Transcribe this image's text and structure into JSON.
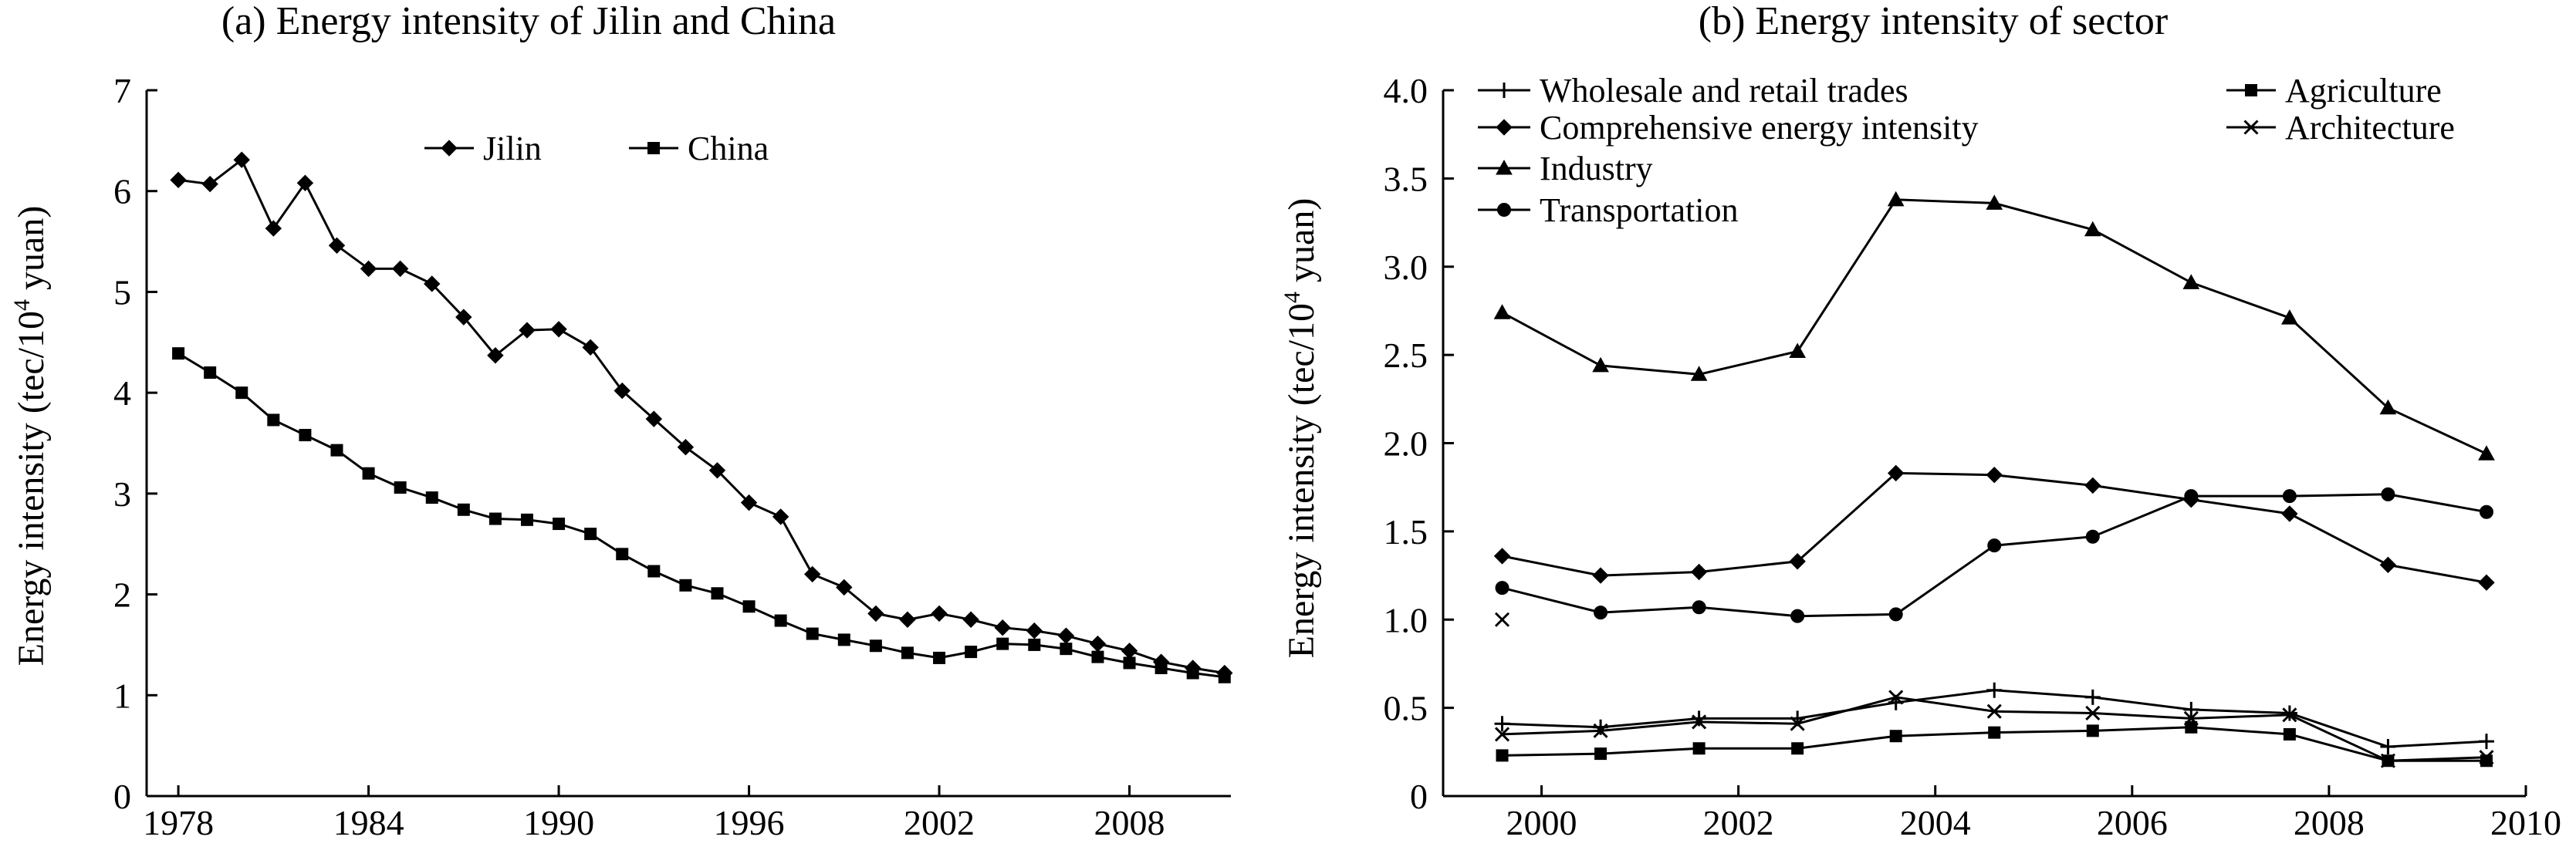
{
  "chart_data": [
    {
      "type": "line",
      "title": "(a) Energy intensity of Jilin and China",
      "ylabel_prefix": "Energy intensity (tec/10",
      "ylabel_sup": "4",
      "ylabel_suffix": " yuan)",
      "xlabel": "",
      "ylim": [
        0,
        7
      ],
      "xlim": [
        1977,
        2011.2
      ],
      "x_ticks": [
        1978,
        1984,
        1990,
        1996,
        2002,
        2008
      ],
      "x_tick_labels": [
        "1978",
        "1984",
        "1990",
        "1996",
        "2002",
        "2008"
      ],
      "y_ticks": [
        0,
        1,
        2,
        3,
        4,
        5,
        6,
        7
      ],
      "y_tick_labels": [
        "0",
        "1",
        "2",
        "3",
        "4",
        "5",
        "6",
        "7"
      ],
      "legend_position": "top-center",
      "x": [
        1978,
        1979,
        1980,
        1981,
        1982,
        1983,
        1984,
        1985,
        1986,
        1987,
        1988,
        1989,
        1990,
        1991,
        1992,
        1993,
        1994,
        1995,
        1996,
        1997,
        1998,
        1999,
        2000,
        2001,
        2002,
        2003,
        2004,
        2005,
        2006,
        2007,
        2008,
        2009,
        2010,
        2011
      ],
      "series": [
        {
          "name": "Jilin",
          "marker": "diamond",
          "values": [
            6.11,
            6.07,
            6.31,
            5.63,
            6.08,
            5.46,
            5.23,
            5.23,
            5.08,
            4.75,
            4.37,
            4.62,
            4.63,
            4.45,
            4.02,
            3.74,
            3.46,
            3.23,
            2.91,
            2.77,
            2.2,
            2.07,
            1.81,
            1.75,
            1.81,
            1.75,
            1.67,
            1.64,
            1.59,
            1.51,
            1.44,
            1.33,
            1.27,
            1.22
          ]
        },
        {
          "name": "China",
          "marker": "square",
          "values": [
            4.39,
            4.2,
            4.0,
            3.73,
            3.58,
            3.43,
            3.2,
            3.06,
            2.96,
            2.84,
            2.75,
            2.74,
            2.7,
            2.6,
            2.4,
            2.23,
            2.09,
            2.01,
            1.88,
            1.74,
            1.61,
            1.55,
            1.49,
            1.42,
            1.37,
            1.43,
            1.51,
            1.5,
            1.46,
            1.38,
            1.32,
            1.27,
            1.22,
            1.18
          ]
        }
      ]
    },
    {
      "type": "line",
      "title": "(b) Energy intensity of sector",
      "ylabel_prefix": "Energy intensity (tec/10",
      "ylabel_sup": "4",
      "ylabel_suffix": " yuan)",
      "xlabel": "",
      "ylim": [
        0,
        4.0
      ],
      "xlim": [
        1999,
        2010
      ],
      "x_ticks": [
        2000,
        2002,
        2004,
        2006,
        2008,
        2010
      ],
      "x_tick_labels": [
        "2000",
        "2002",
        "2004",
        "2006",
        "2008",
        "2010"
      ],
      "y_ticks": [
        0,
        0.5,
        1.0,
        1.5,
        2.0,
        2.5,
        3.0,
        3.5,
        4.0
      ],
      "y_tick_labels": [
        "0",
        "0.5",
        "1.0",
        "1.5",
        "2.0",
        "2.5",
        "3.0",
        "3.5",
        "4.0"
      ],
      "legend_position": "top",
      "x": [
        1999.6,
        2000.6,
        2001.6,
        2002.6,
        2003.6,
        2004.6,
        2005.6,
        2006.6,
        2007.6,
        2008.6,
        2009.6
      ],
      "series": [
        {
          "name": "Wholesale and retail trades",
          "marker": "plus",
          "values": [
            0.41,
            0.39,
            0.44,
            0.44,
            0.53,
            0.6,
            0.56,
            0.49,
            0.47,
            0.28,
            0.31
          ]
        },
        {
          "name": "Comprehensive energy intensity",
          "marker": "diamond",
          "values": [
            1.36,
            1.25,
            1.27,
            1.33,
            1.83,
            1.82,
            1.76,
            1.68,
            1.6,
            1.31,
            1.21
          ]
        },
        {
          "name": "Industry",
          "marker": "triangle",
          "values": [
            2.74,
            2.44,
            2.39,
            2.52,
            3.38,
            3.36,
            3.21,
            2.91,
            2.71,
            2.2,
            1.94
          ]
        },
        {
          "name": "Transportation",
          "marker": "circle",
          "values": [
            1.18,
            1.04,
            1.07,
            1.02,
            1.03,
            1.42,
            1.47,
            1.7,
            1.7,
            1.71,
            1.61
          ]
        },
        {
          "name": "Agriculture",
          "marker": "square",
          "values": [
            0.23,
            0.24,
            0.27,
            0.27,
            0.34,
            0.36,
            0.37,
            0.39,
            0.35,
            0.2,
            0.2
          ]
        },
        {
          "name": "Architecture",
          "marker": "x",
          "values": [
            0.35,
            0.37,
            0.42,
            0.41,
            0.56,
            0.48,
            0.47,
            0.44,
            0.46,
            0.2,
            0.22
          ]
        }
      ],
      "extra_points": [
        {
          "x": 1999.6,
          "y": 1.0,
          "marker": "x"
        }
      ]
    }
  ]
}
